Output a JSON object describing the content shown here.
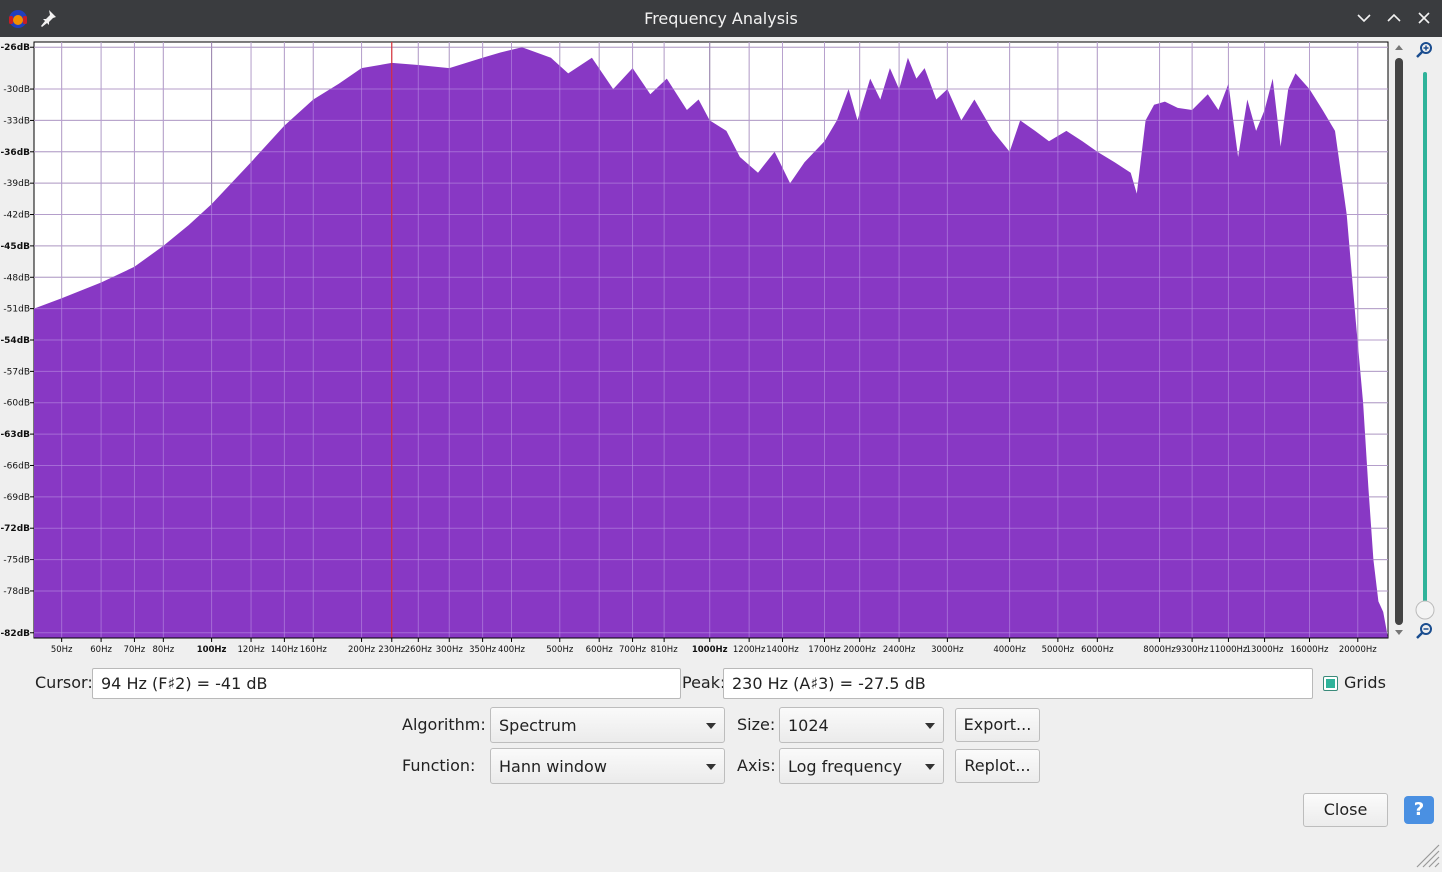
{
  "window": {
    "title": "Frequency Analysis"
  },
  "plot": {
    "grids_on": true,
    "fill_color": "#8838c4",
    "cursor_line_color": "#e02020",
    "cursor_line_freq_hz": 230,
    "slider_color": "#2fb39a"
  },
  "chart_data": {
    "type": "area",
    "title": "",
    "xlabel": "",
    "ylabel": "",
    "x_scale": "log",
    "xlim_hz": [
      44,
      23000
    ],
    "ylim_db": [
      -82.5,
      -25.5
    ],
    "y_ticks": [
      "-26dB",
      "-30dB",
      "-33dB",
      "-36dB",
      "-39dB",
      "-42dB",
      "-45dB",
      "-48dB",
      "-51dB",
      "-54dB",
      "-57dB",
      "-60dB",
      "-63dB",
      "-66dB",
      "-69dB",
      "-72dB",
      "-75dB",
      "-78dB",
      "-82dB"
    ],
    "x_ticks": [
      {
        "label": "50Hz",
        "hz": 50
      },
      {
        "label": "60Hz",
        "hz": 60
      },
      {
        "label": "70Hz",
        "hz": 70
      },
      {
        "label": "80Hz",
        "hz": 80
      },
      {
        "label": "100Hz",
        "hz": 100,
        "bold": true
      },
      {
        "label": "120Hz",
        "hz": 120
      },
      {
        "label": "140Hz",
        "hz": 140
      },
      {
        "label": "160Hz",
        "hz": 160
      },
      {
        "label": "200Hz",
        "hz": 200
      },
      {
        "label": "230Hz",
        "hz": 230
      },
      {
        "label": "260Hz",
        "hz": 260
      },
      {
        "label": "300Hz",
        "hz": 300
      },
      {
        "label": "350Hz",
        "hz": 350
      },
      {
        "label": "400Hz",
        "hz": 400
      },
      {
        "label": "500Hz",
        "hz": 500
      },
      {
        "label": "600Hz",
        "hz": 600
      },
      {
        "label": "700Hz",
        "hz": 700
      },
      {
        "label": "810Hz",
        "hz": 810
      },
      {
        "label": "1000Hz",
        "hz": 1000,
        "bold": true
      },
      {
        "label": "1200Hz",
        "hz": 1200
      },
      {
        "label": "1400Hz",
        "hz": 1400
      },
      {
        "label": "1700Hz",
        "hz": 1700
      },
      {
        "label": "2000Hz",
        "hz": 2000
      },
      {
        "label": "2400Hz",
        "hz": 2400
      },
      {
        "label": "3000Hz",
        "hz": 3000
      },
      {
        "label": "4000Hz",
        "hz": 4000
      },
      {
        "label": "5000Hz",
        "hz": 5000
      },
      {
        "label": "6000Hz",
        "hz": 6000
      },
      {
        "label": "8000Hz",
        "hz": 8000
      },
      {
        "label": "9300Hz",
        "hz": 9300
      },
      {
        "label": "11000Hz",
        "hz": 11000
      },
      {
        "label": "13000Hz",
        "hz": 13000
      },
      {
        "label": "16000Hz",
        "hz": 16000
      },
      {
        "label": "20000Hz",
        "hz": 20000
      }
    ],
    "x": [
      44,
      50,
      60,
      70,
      80,
      90,
      100,
      120,
      140,
      160,
      180,
      200,
      230,
      260,
      300,
      350,
      380,
      420,
      480,
      520,
      580,
      640,
      700,
      760,
      820,
      900,
      950,
      1000,
      1080,
      1150,
      1250,
      1350,
      1450,
      1550,
      1700,
      1800,
      1900,
      1980,
      2100,
      2200,
      2300,
      2400,
      2500,
      2600,
      2700,
      2850,
      3000,
      3200,
      3400,
      3700,
      4000,
      4200,
      4500,
      4800,
      5200,
      5600,
      6000,
      6500,
      7000,
      7200,
      7500,
      7800,
      8200,
      8700,
      9300,
      10000,
      10500,
      11000,
      11500,
      12000,
      12500,
      13000,
      13500,
      14000,
      14500,
      15000,
      16000,
      17000,
      18000,
      19000,
      19800,
      20500,
      21000,
      21500,
      22000,
      22500,
      23000
    ],
    "values": [
      -51,
      -50,
      -48.5,
      -47,
      -45,
      -43,
      -41,
      -37,
      -33.5,
      -31,
      -29.5,
      -28,
      -27.5,
      -27.7,
      -28,
      -27,
      -26.5,
      -26,
      -27,
      -28.5,
      -27,
      -30,
      -28,
      -30.5,
      -29,
      -32,
      -31,
      -33,
      -34,
      -36.5,
      -38,
      -36,
      -39,
      -37,
      -35,
      -33,
      -30,
      -33,
      -29,
      -31,
      -28,
      -30,
      -27,
      -29,
      -28,
      -31,
      -30,
      -33,
      -31,
      -34,
      -36,
      -33,
      -34,
      -35,
      -34,
      -35,
      -36,
      -37,
      -38,
      -40,
      -33,
      -31.5,
      -31.2,
      -31.8,
      -32,
      -30.5,
      -32,
      -29.5,
      -36.5,
      -31,
      -34,
      -32,
      -29,
      -35.5,
      -30,
      -28.5,
      -30,
      -32,
      -34,
      -42,
      -52,
      -60,
      -68,
      -75,
      -79,
      -80,
      -82.5
    ]
  },
  "controls": {
    "cursor_label": "Cursor:",
    "cursor_value": "94 Hz (F♯2) = -41 dB",
    "peak_label": "Peak:",
    "peak_value": "230 Hz (A♯3) = -27.5 dB",
    "grids_label": "Grids",
    "algorithm_label": "Algorithm:",
    "algorithm_value": "Spectrum",
    "size_label": "Size:",
    "size_value": "1024",
    "export_label": "Export...",
    "function_label": "Function:",
    "function_value": "Hann window",
    "axis_label": "Axis:",
    "axis_value": "Log frequency",
    "replot_label": "Replot...",
    "close_label": "Close",
    "help_label": "?"
  }
}
